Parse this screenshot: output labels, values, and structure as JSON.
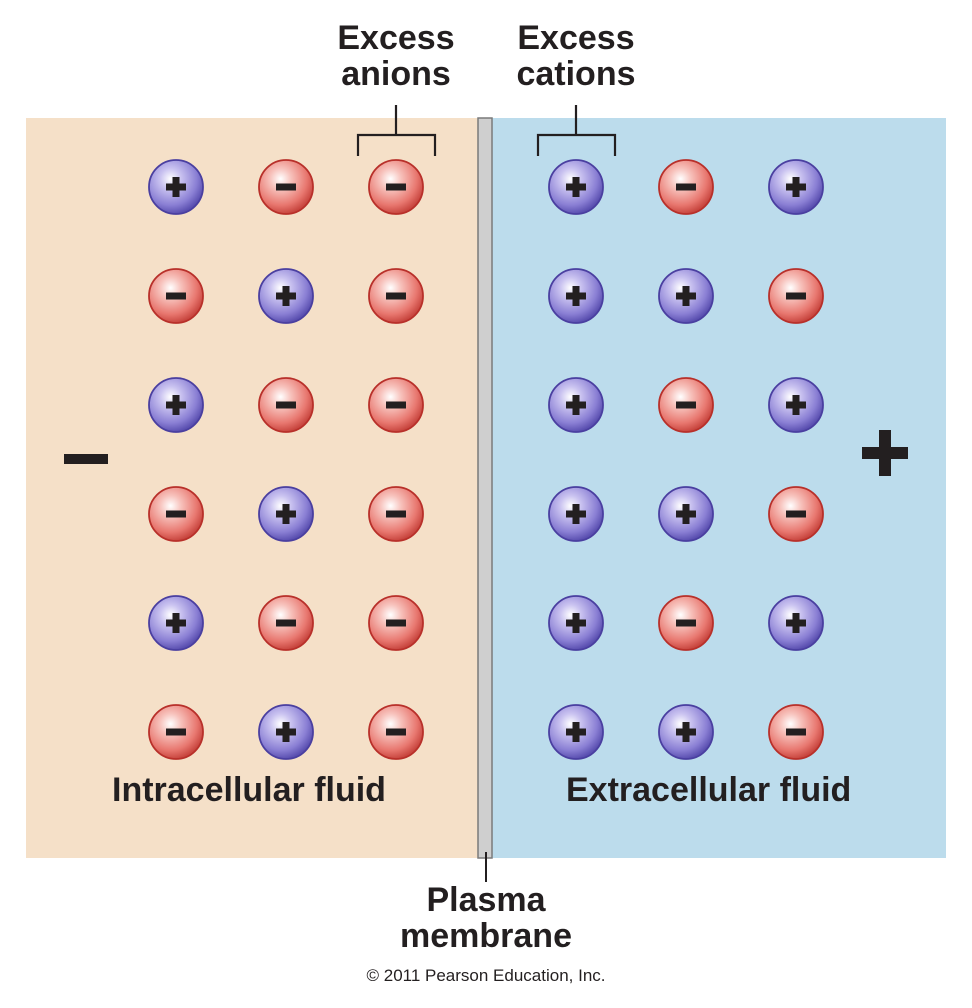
{
  "labels": {
    "excess_anions": [
      "Excess",
      "anions"
    ],
    "excess_cations": [
      "Excess",
      "cations"
    ],
    "intracellular": "Intracellular fluid",
    "extracellular": "Extracellular fluid",
    "membrane": [
      "Plasma",
      "membrane"
    ],
    "inside_charge": "−",
    "outside_charge": "+"
  },
  "copyright": "© 2011 Pearson Education, Inc.",
  "colors": {
    "intracellular_bg": "#f5e0c8",
    "extracellular_bg": "#bcdcec",
    "membrane": "#cfcfcf",
    "cation_fill": "#8a7fd4",
    "anion_fill": "#e8776f",
    "text": "#231f20"
  },
  "ions": {
    "intracellular_rows": [
      [
        "+",
        "-",
        "-"
      ],
      [
        "-",
        "+",
        "-"
      ],
      [
        "+",
        "-",
        "-"
      ],
      [
        "-",
        "+",
        "-"
      ],
      [
        "+",
        "-",
        "-"
      ],
      [
        "-",
        "+",
        "-"
      ]
    ],
    "extracellular_rows": [
      [
        "+",
        "-",
        "+"
      ],
      [
        "+",
        "+",
        "-"
      ],
      [
        "+",
        "-",
        "+"
      ],
      [
        "+",
        "+",
        "-"
      ],
      [
        "+",
        "-",
        "+"
      ],
      [
        "+",
        "+",
        "-"
      ]
    ]
  }
}
